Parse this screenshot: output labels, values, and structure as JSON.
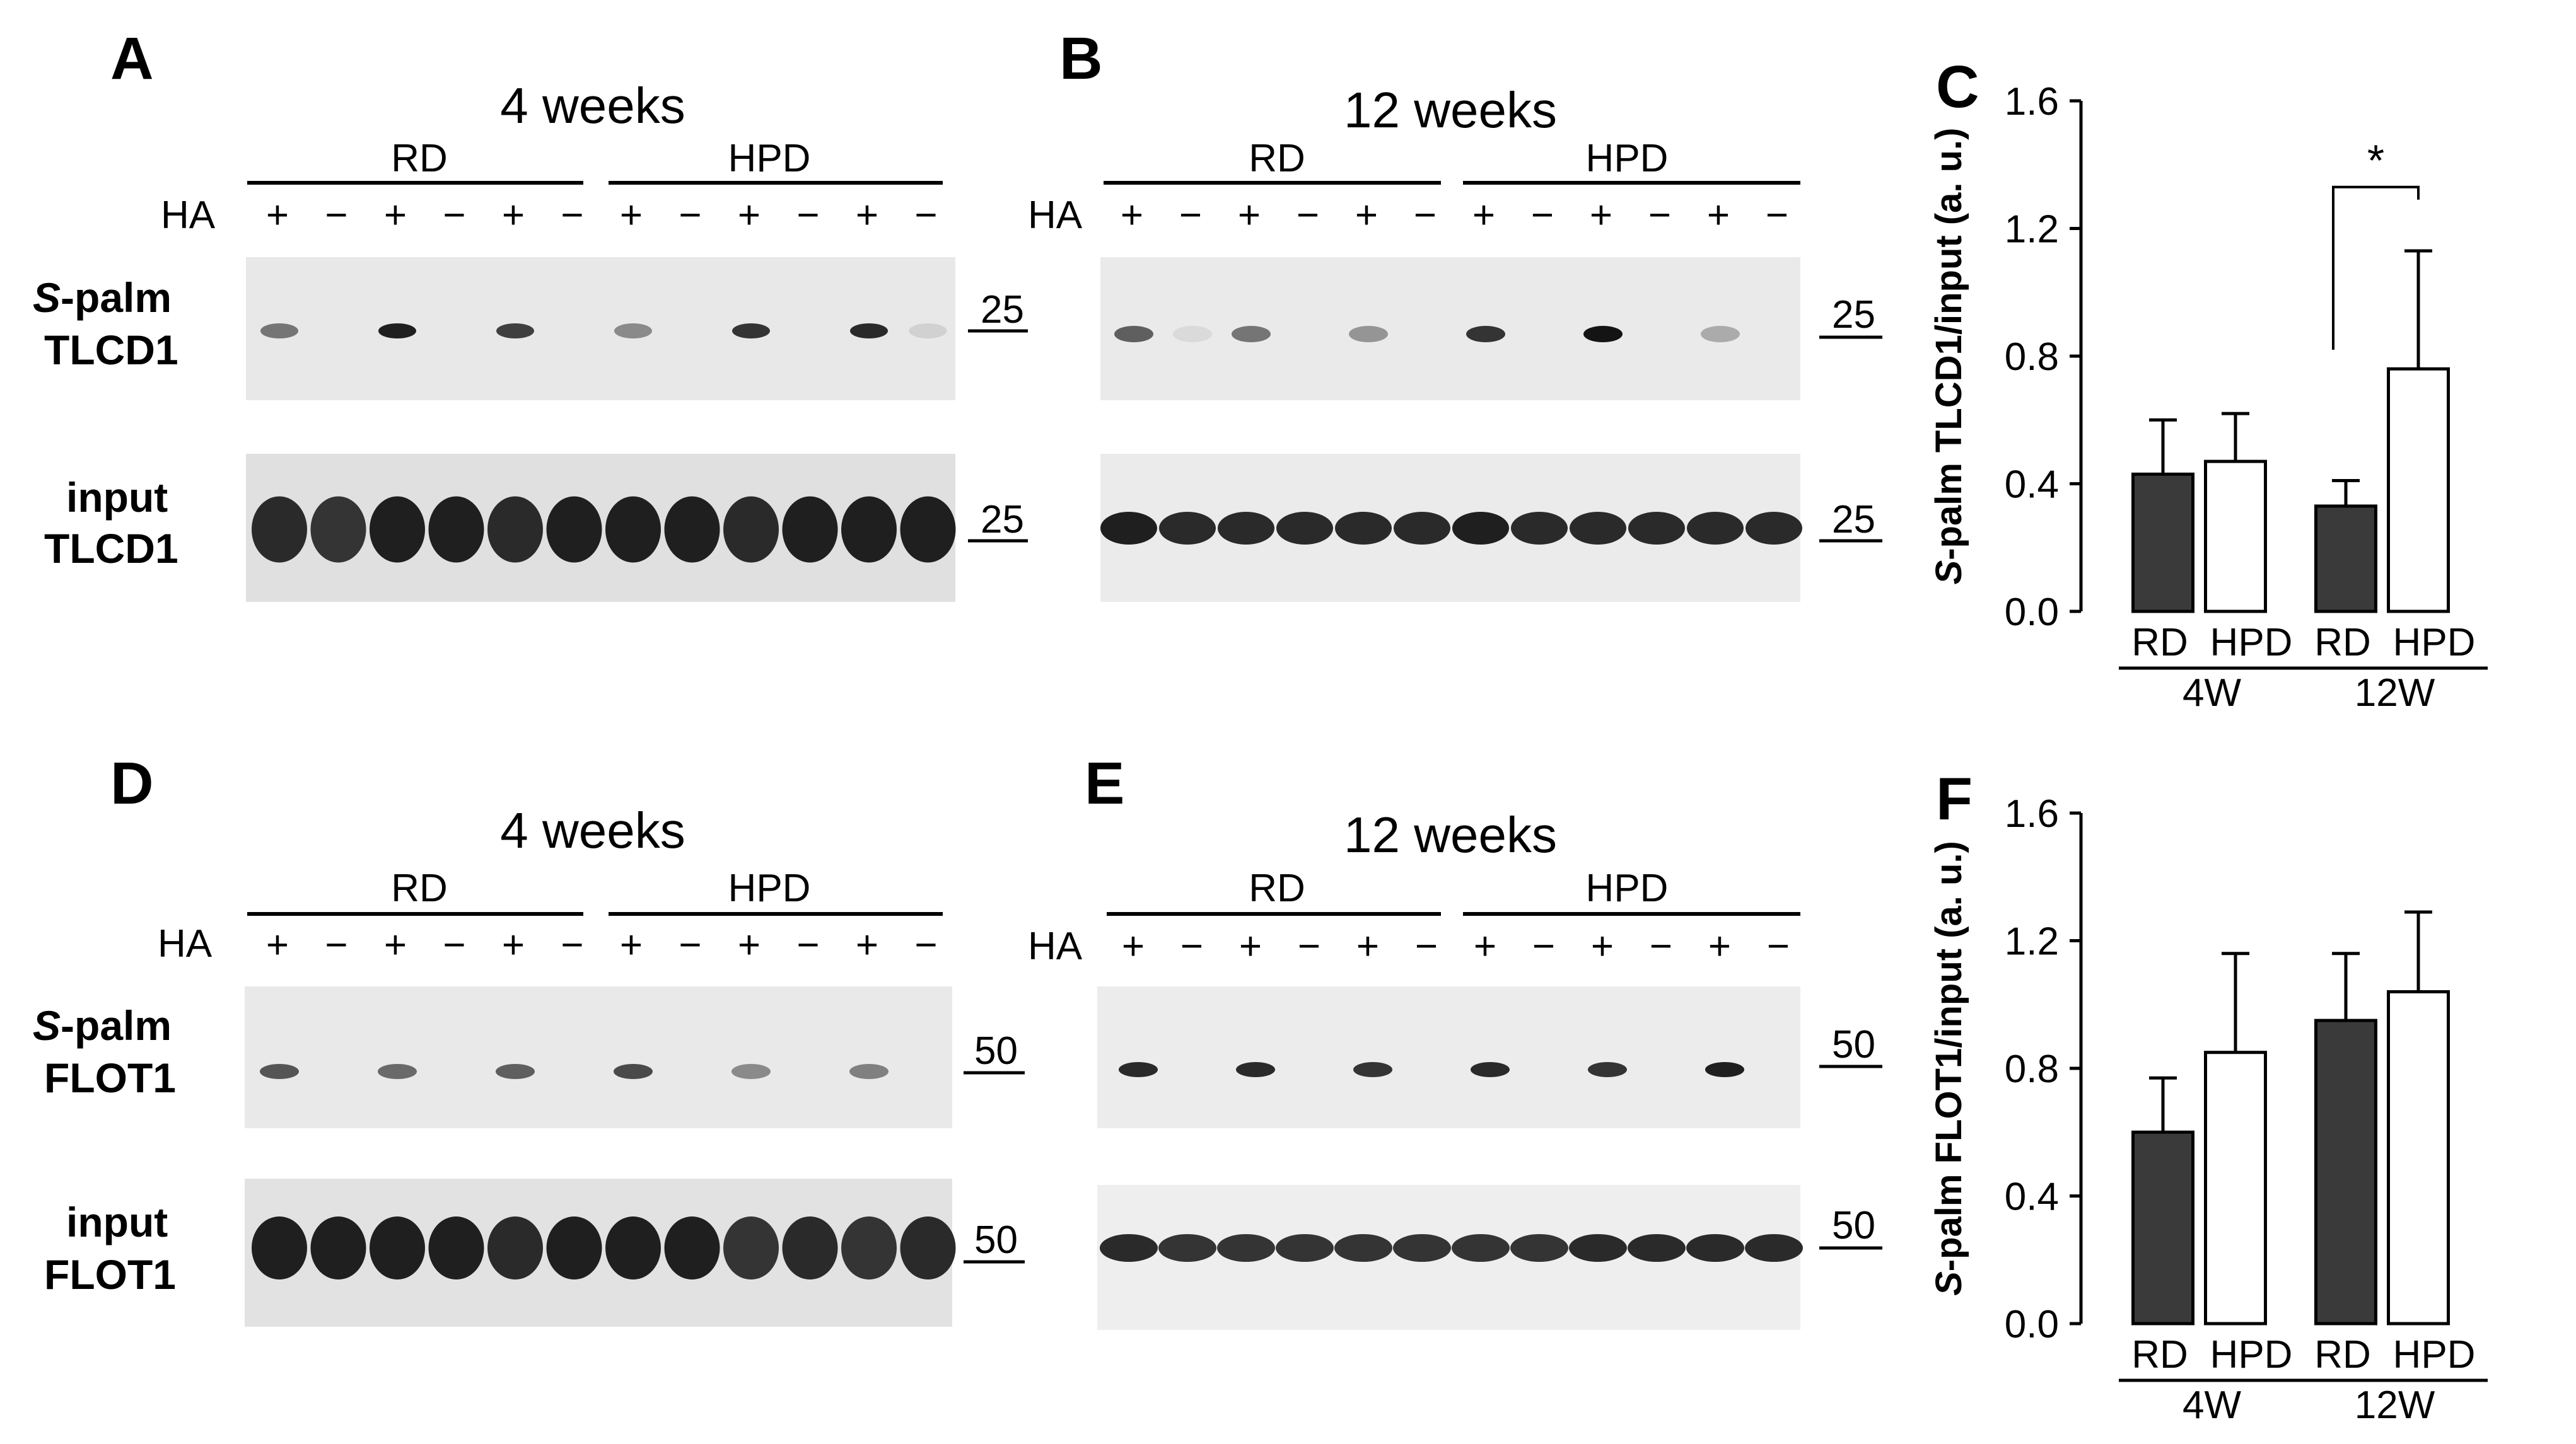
{
  "panels": {
    "A": {
      "letter": "A",
      "title": "4 weeks",
      "group_left": "RD",
      "group_right": "HPD",
      "ha_label": "HA",
      "ha_signs": [
        "+",
        "−",
        "+",
        "−",
        "+",
        "−",
        "+",
        "−",
        "+",
        "−",
        "+",
        "−"
      ],
      "blot1_label1": "S",
      "blot1_label1b": "-palm",
      "blot1_label2": "TLCD1",
      "blot1_mw": "25",
      "blot2_label1": "input",
      "blot2_label2": "TLCD1",
      "blot2_mw": "25"
    },
    "B": {
      "letter": "B",
      "title": "12 weeks",
      "group_left": "RD",
      "group_right": "HPD",
      "ha_label": "HA",
      "ha_signs": [
        "+",
        "−",
        "+",
        "−",
        "+",
        "−",
        "+",
        "−",
        "+",
        "−",
        "+",
        "−"
      ],
      "blot1_mw": "25",
      "blot2_mw": "25"
    },
    "D": {
      "letter": "D",
      "title": "4 weeks",
      "group_left": "RD",
      "group_right": "HPD",
      "ha_label": "HA",
      "ha_signs": [
        "+",
        "−",
        "+",
        "−",
        "+",
        "−",
        "+",
        "−",
        "+",
        "−",
        "+",
        "−"
      ],
      "blot1_label1": "S",
      "blot1_label1b": "-palm",
      "blot1_label2": "FLOT1",
      "blot1_mw": "50",
      "blot2_label1": "input",
      "blot2_label2": "FLOT1",
      "blot2_mw": "50"
    },
    "E": {
      "letter": "E",
      "title": "12 weeks",
      "group_left": "RD",
      "group_right": "HPD",
      "ha_label": "HA",
      "ha_signs": [
        "+",
        "−",
        "+",
        "−",
        "+",
        "−",
        "+",
        "−",
        "+",
        "−",
        "+",
        "−"
      ],
      "blot1_mw": "50",
      "blot2_mw": "50"
    }
  },
  "colors": {
    "dark_bar": "#3a3a3a",
    "light_bar": "#ffffff",
    "blot_bg": "#e6e6e6",
    "band": "#1a1a1a"
  },
  "chart_data": [
    {
      "letter": "C",
      "type": "bar",
      "ylabel_italic": "S",
      "ylabel": "-palm TLCD1/input (a. u.)",
      "ylim": [
        0,
        1.6
      ],
      "yticks": [
        "0.0",
        "0.4",
        "0.8",
        "1.2",
        "1.6"
      ],
      "categories": [
        "RD",
        "HPD",
        "RD",
        "HPD"
      ],
      "groups": [
        "4W",
        "12W"
      ],
      "values": [
        0.43,
        0.47,
        0.33,
        0.76
      ],
      "errors": [
        0.17,
        0.15,
        0.08,
        0.37
      ],
      "fills": [
        "dark",
        "light",
        "dark",
        "light"
      ],
      "significance": "*"
    },
    {
      "letter": "F",
      "type": "bar",
      "ylabel_italic": "S",
      "ylabel": "-palm FLOT1/input (a. u.)",
      "ylim": [
        0,
        1.6
      ],
      "yticks": [
        "0.0",
        "0.4",
        "0.8",
        "1.2",
        "1.6"
      ],
      "categories": [
        "RD",
        "HPD",
        "RD",
        "HPD"
      ],
      "groups": [
        "4W",
        "12W"
      ],
      "values": [
        0.6,
        0.85,
        0.95,
        1.04
      ],
      "errors": [
        0.17,
        0.31,
        0.21,
        0.25
      ],
      "fills": [
        "dark",
        "light",
        "dark",
        "light"
      ]
    }
  ]
}
